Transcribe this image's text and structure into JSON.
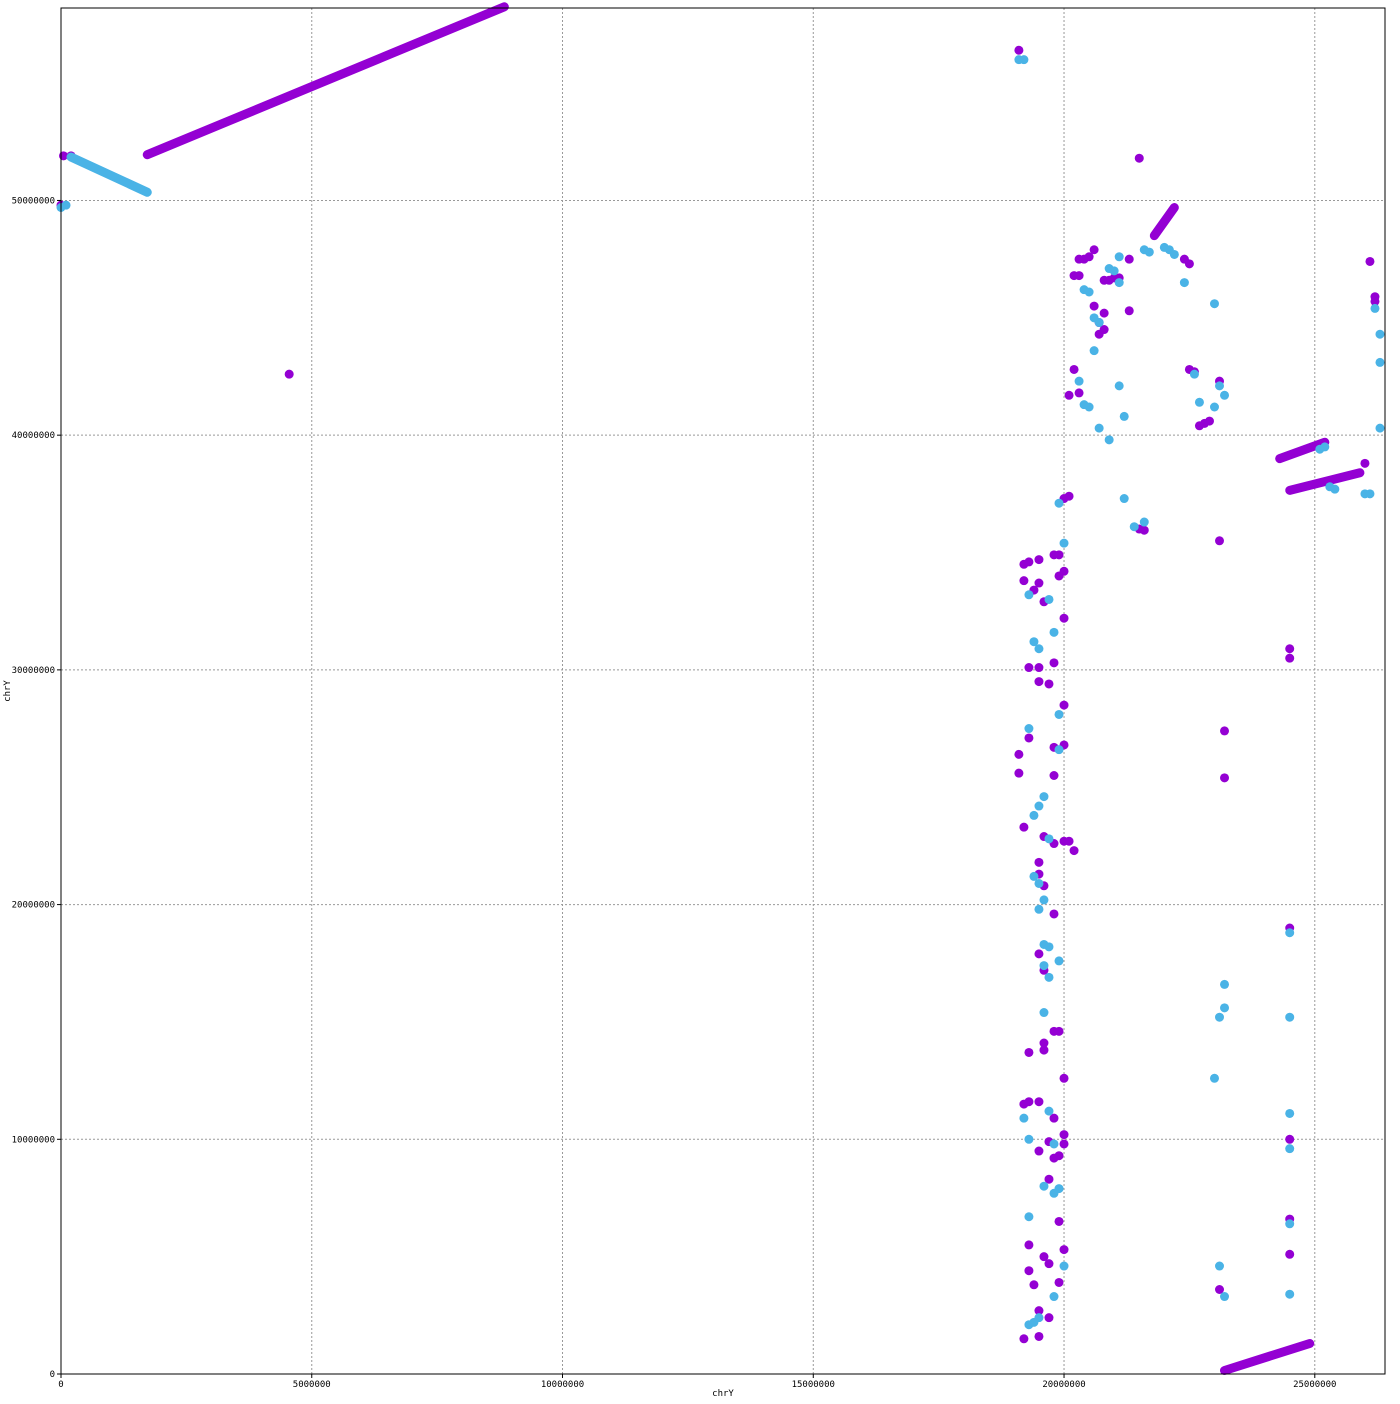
{
  "chart_data": {
    "type": "scatter",
    "title": "",
    "xlabel": "chrY",
    "ylabel": "chrY",
    "xlim": [
      0,
      26400000
    ],
    "ylim": [
      0,
      58200000
    ],
    "x_ticks": [
      {
        "value": 0,
        "label": "0"
      },
      {
        "value": 5000000,
        "label": "5000000"
      },
      {
        "value": 10000000,
        "label": "10000000"
      },
      {
        "value": 15000000,
        "label": "15000000"
      },
      {
        "value": 20000000,
        "label": "20000000"
      },
      {
        "value": 25000000,
        "label": "25000000"
      }
    ],
    "y_ticks": [
      {
        "value": 0,
        "label": "0"
      },
      {
        "value": 10000000,
        "label": "10000000"
      },
      {
        "value": 20000000,
        "label": "20000000"
      },
      {
        "value": 30000000,
        "label": "30000000"
      },
      {
        "value": 40000000,
        "label": "40000000"
      },
      {
        "value": 50000000,
        "label": "50000000"
      }
    ],
    "grid": true,
    "series": [
      {
        "color": "#9400d3",
        "segments": [
          [
            [
              1720000,
              51950000
            ],
            [
              8840000,
              58250000
            ]
          ],
          [
            [
              23200000,
              150000
            ],
            [
              24900000,
              1300000
            ]
          ],
          [
            [
              24300000,
              39000000
            ],
            [
              25200000,
              39700000
            ]
          ],
          [
            [
              24500000,
              37650000
            ],
            [
              25900000,
              38400000
            ]
          ],
          [
            [
              21800000,
              48500000
            ],
            [
              22200000,
              49700000
            ]
          ]
        ],
        "points": [
          [
            0,
            49800000
          ],
          [
            50000,
            51900000
          ],
          [
            200000,
            51900000
          ],
          [
            4550000,
            42600000
          ],
          [
            19100000,
            56400000
          ],
          [
            21500000,
            51800000
          ],
          [
            21500000,
            36000000
          ],
          [
            21600000,
            35950000
          ],
          [
            20000000,
            37300000
          ],
          [
            20100000,
            37400000
          ],
          [
            19200000,
            34500000
          ],
          [
            19300000,
            34600000
          ],
          [
            19500000,
            34700000
          ],
          [
            19800000,
            34900000
          ],
          [
            19900000,
            34900000
          ],
          [
            19200000,
            33800000
          ],
          [
            19400000,
            33400000
          ],
          [
            19500000,
            33700000
          ],
          [
            19600000,
            32900000
          ],
          [
            19900000,
            34000000
          ],
          [
            20000000,
            34200000
          ],
          [
            20000000,
            32200000
          ],
          [
            19300000,
            30100000
          ],
          [
            19500000,
            30100000
          ],
          [
            19500000,
            29500000
          ],
          [
            19800000,
            30300000
          ],
          [
            19700000,
            29400000
          ],
          [
            20000000,
            28500000
          ],
          [
            19100000,
            26400000
          ],
          [
            19300000,
            27100000
          ],
          [
            19100000,
            25600000
          ],
          [
            19800000,
            26700000
          ],
          [
            19800000,
            25500000
          ],
          [
            20000000,
            26800000
          ],
          [
            19200000,
            23300000
          ],
          [
            19600000,
            22900000
          ],
          [
            19800000,
            22600000
          ],
          [
            20000000,
            22700000
          ],
          [
            20100000,
            22700000
          ],
          [
            20200000,
            22300000
          ],
          [
            19500000,
            21800000
          ],
          [
            19500000,
            21300000
          ],
          [
            19600000,
            20800000
          ],
          [
            19800000,
            19600000
          ],
          [
            19500000,
            17900000
          ],
          [
            19600000,
            17200000
          ],
          [
            19600000,
            14100000
          ],
          [
            19800000,
            14600000
          ],
          [
            19900000,
            14600000
          ],
          [
            19300000,
            13700000
          ],
          [
            19600000,
            13800000
          ],
          [
            20000000,
            12600000
          ],
          [
            19200000,
            11500000
          ],
          [
            19300000,
            11600000
          ],
          [
            19500000,
            11600000
          ],
          [
            19800000,
            10900000
          ],
          [
            19500000,
            9500000
          ],
          [
            19700000,
            9900000
          ],
          [
            19800000,
            9200000
          ],
          [
            19900000,
            9300000
          ],
          [
            20000000,
            10200000
          ],
          [
            20000000,
            9800000
          ],
          [
            19700000,
            8300000
          ],
          [
            19900000,
            6500000
          ],
          [
            19300000,
            5500000
          ],
          [
            19300000,
            4400000
          ],
          [
            19600000,
            5000000
          ],
          [
            19400000,
            3800000
          ],
          [
            19700000,
            4700000
          ],
          [
            20000000,
            5300000
          ],
          [
            19900000,
            3900000
          ],
          [
            19500000,
            2700000
          ],
          [
            19700000,
            2400000
          ],
          [
            19500000,
            1600000
          ],
          [
            19200000,
            1500000
          ],
          [
            20300000,
            47500000
          ],
          [
            20400000,
            47500000
          ],
          [
            20500000,
            47600000
          ],
          [
            20200000,
            46800000
          ],
          [
            20300000,
            46800000
          ],
          [
            20600000,
            47900000
          ],
          [
            21300000,
            47500000
          ],
          [
            20800000,
            46600000
          ],
          [
            20900000,
            46600000
          ],
          [
            21000000,
            46700000
          ],
          [
            21100000,
            46700000
          ],
          [
            20800000,
            45200000
          ],
          [
            20600000,
            45500000
          ],
          [
            20700000,
            44800000
          ],
          [
            21300000,
            45300000
          ],
          [
            20800000,
            44500000
          ],
          [
            20200000,
            42800000
          ],
          [
            20100000,
            41700000
          ],
          [
            20300000,
            41800000
          ],
          [
            20700000,
            44300000
          ],
          [
            22400000,
            47500000
          ],
          [
            22500000,
            47300000
          ],
          [
            22500000,
            42800000
          ],
          [
            22600000,
            42700000
          ],
          [
            22800000,
            40500000
          ],
          [
            22900000,
            40600000
          ],
          [
            23100000,
            42300000
          ],
          [
            22700000,
            40400000
          ],
          [
            23100000,
            35500000
          ],
          [
            23200000,
            27400000
          ],
          [
            23200000,
            25400000
          ],
          [
            24500000,
            30900000
          ],
          [
            24500000,
            30500000
          ],
          [
            24500000,
            19000000
          ],
          [
            24500000,
            10000000
          ],
          [
            24500000,
            6600000
          ],
          [
            24500000,
            5100000
          ],
          [
            23100000,
            3600000
          ],
          [
            26100000,
            47400000
          ],
          [
            26200000,
            45900000
          ],
          [
            26200000,
            45700000
          ],
          [
            26000000,
            38800000
          ]
        ]
      },
      {
        "color": "#4ab3e6",
        "segments": [
          [
            [
              200000,
              51850000
            ],
            [
              1720000,
              50350000
            ]
          ]
        ],
        "points": [
          [
            0,
            49700000
          ],
          [
            100000,
            49800000
          ],
          [
            19100000,
            56000000
          ],
          [
            19200000,
            56000000
          ],
          [
            19900000,
            37100000
          ],
          [
            20000000,
            35400000
          ],
          [
            19300000,
            33200000
          ],
          [
            19400000,
            31200000
          ],
          [
            19500000,
            30900000
          ],
          [
            19700000,
            33000000
          ],
          [
            19800000,
            31600000
          ],
          [
            19900000,
            28100000
          ],
          [
            19300000,
            27500000
          ],
          [
            19400000,
            23800000
          ],
          [
            19500000,
            24200000
          ],
          [
            19600000,
            24600000
          ],
          [
            19700000,
            22800000
          ],
          [
            19900000,
            26600000
          ],
          [
            19400000,
            21200000
          ],
          [
            19500000,
            20900000
          ],
          [
            19600000,
            20200000
          ],
          [
            19500000,
            19800000
          ],
          [
            19600000,
            18300000
          ],
          [
            19700000,
            18200000
          ],
          [
            19900000,
            17600000
          ],
          [
            19600000,
            17400000
          ],
          [
            19700000,
            16900000
          ],
          [
            19600000,
            15400000
          ],
          [
            19200000,
            10900000
          ],
          [
            19300000,
            10000000
          ],
          [
            19700000,
            11200000
          ],
          [
            19800000,
            9800000
          ],
          [
            19600000,
            8000000
          ],
          [
            19800000,
            7700000
          ],
          [
            19900000,
            7900000
          ],
          [
            19300000,
            6700000
          ],
          [
            20000000,
            4600000
          ],
          [
            19800000,
            3300000
          ],
          [
            19300000,
            2100000
          ],
          [
            19400000,
            2200000
          ],
          [
            19500000,
            2400000
          ],
          [
            20400000,
            46200000
          ],
          [
            20500000,
            46100000
          ],
          [
            20600000,
            45000000
          ],
          [
            20700000,
            44800000
          ],
          [
            20900000,
            47100000
          ],
          [
            21000000,
            47000000
          ],
          [
            21100000,
            46500000
          ],
          [
            21100000,
            47600000
          ],
          [
            21600000,
            47900000
          ],
          [
            21700000,
            47800000
          ],
          [
            20300000,
            42300000
          ],
          [
            20400000,
            41300000
          ],
          [
            20500000,
            41200000
          ],
          [
            20600000,
            43600000
          ],
          [
            20700000,
            40300000
          ],
          [
            20900000,
            39800000
          ],
          [
            21100000,
            42100000
          ],
          [
            21200000,
            40800000
          ],
          [
            21200000,
            37300000
          ],
          [
            21400000,
            36100000
          ],
          [
            21600000,
            36300000
          ],
          [
            22000000,
            48000000
          ],
          [
            22100000,
            47900000
          ],
          [
            22200000,
            47700000
          ],
          [
            22400000,
            46500000
          ],
          [
            22600000,
            42600000
          ],
          [
            22700000,
            41400000
          ],
          [
            23000000,
            45600000
          ],
          [
            23100000,
            42100000
          ],
          [
            23200000,
            41700000
          ],
          [
            23000000,
            41200000
          ],
          [
            23200000,
            16600000
          ],
          [
            23200000,
            15600000
          ],
          [
            23100000,
            15200000
          ],
          [
            23000000,
            12600000
          ],
          [
            23100000,
            4600000
          ],
          [
            23200000,
            3300000
          ],
          [
            24500000,
            18800000
          ],
          [
            24500000,
            15200000
          ],
          [
            24500000,
            11100000
          ],
          [
            24500000,
            9600000
          ],
          [
            24500000,
            6400000
          ],
          [
            24500000,
            3400000
          ],
          [
            25300000,
            37800000
          ],
          [
            25400000,
            37700000
          ],
          [
            26000000,
            37500000
          ],
          [
            26100000,
            37500000
          ],
          [
            26200000,
            45400000
          ],
          [
            26300000,
            44300000
          ],
          [
            26300000,
            43100000
          ],
          [
            26300000,
            40300000
          ],
          [
            25100000,
            39400000
          ],
          [
            25200000,
            39500000
          ]
        ]
      }
    ]
  }
}
